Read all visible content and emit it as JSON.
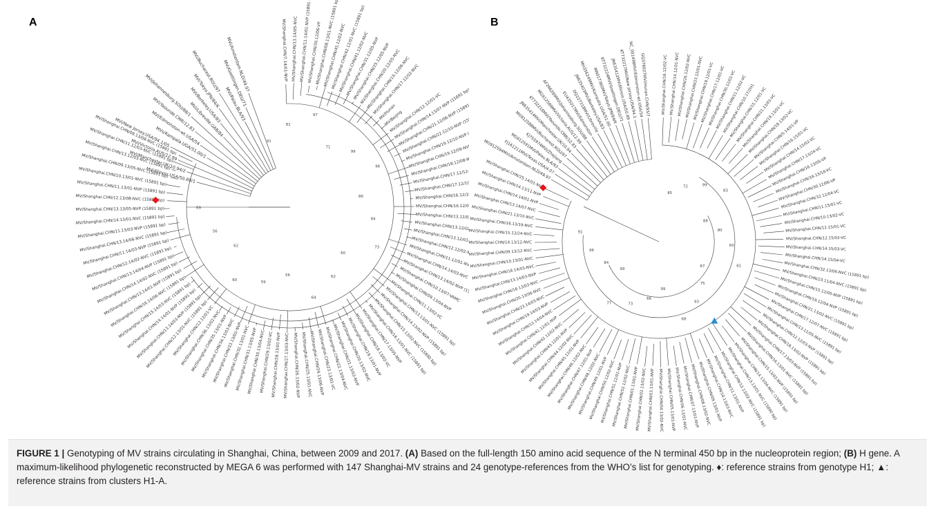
{
  "figure": {
    "panels": [
      {
        "label": "A",
        "root_marker": {
          "symbol": "diamond",
          "color": "#e8141b"
        },
        "bootstrap_values": [
          "91",
          "81",
          "97",
          "71",
          "99",
          "96",
          "86",
          "94",
          "73",
          "60",
          "62",
          "64",
          "56",
          "59",
          "60",
          "62",
          "56",
          "69"
        ],
        "tips": [
          "MV/Shanghai.CHN/7.14/01-NVP",
          "MV/Shanghai.CHN/13.14/05-NVC",
          "MV/Shanghai.CHN/11.14/01-NVP (15891 bp)",
          "MV/Shanghai.CHN/30.12/06-VP",
          "MV/Shanghai.CHN/08.13/01-NVC (15891 bp)",
          "MV/Shanghai.CHN/45.12/02-NVC",
          "MV/Shanghai.CHN/42.12/01-NVC (15891 bp)",
          "MV/Shanghai.CHN/41.12/02-NVC",
          "MV/Shanghai.CHN/31.12/05-NVP",
          "MV/Shanghai.CHN/25.12/05-NVP",
          "MV/Shanghai.CHN/20.12/05-NVC",
          "MV/Shanghai.CHN/19.12/06-NVC",
          "MV/Shanghai.CHN/17.12/02-NVC",
          "MV/Hunan",
          "MV/Beijing",
          "MV/Shanghai.CHN/12.12/01-VC",
          "MV/Shanghai.CHN/14.13/07-NVP (15891 bp)",
          "MV/Shanghai.CHN/21.12/06-NVP (15891 bp)",
          "MV/Shanghai.CHN/22.12/10-NVP (15891 bp)",
          "MV/Shanghai.CHN/19.12/10-NVP (15891 bp)",
          "MV/Shanghai.CHN/19.12/09-NVP (15891 bp)",
          "MV/Shanghai.CHN/18.12/08-NVP (15891 bp)",
          "MV/Shanghai.CHN/17.12/12-NVP (15891 bp)",
          "MV/Shanghai.CHN/17.12/10-NVC (15891 bp)",
          "MV/Shanghai.CHN/16.12/18-NVP (15891 bp)",
          "MV/Shanghai.CHN/16.12/07-NVC (15891 bp)",
          "MV/Shanghai.CHN/13.12/03-NVP (15891 bp)",
          "MV/Shanghai.CHN/13.12/02-NVP (15891 bp)",
          "MV/Shanghai.CHN/13.12/01-NVC (15891 bp)",
          "MV/Shanghai.CHN/12.12/02-NVC (15891 bp)",
          "MV/Shanghai.CHN/11.12/01-NVC (15890 bp)",
          "MV/Shanghai.CHN/14.14/03-NVC (15891 bp)",
          "MV/Shanghai.CHN/13.14/02-NVP (15891 bp)",
          "MV/Shanghai.CHN/10.13/07-VAMC",
          "MV/Shanghai.CHN/09.13/04-NVP",
          "MV/Shanghai.CHN/11.13/02-VC",
          "MV/Shanghai.CHN/13.13/01-NVC (15891 bp)",
          "MV/Shanghai.CHN/14.13/02-NVP (15891 bp)",
          "MV/Shanghai.CHN/15.13/02-NVC (15890 bp)",
          "MV/Shanghai.CHN/16.13/01-NVC (15891 bp)",
          "MV/Shanghai.CHN/17.13/05-NVP",
          "MV/Shanghai.CHN/18.13/02-VC",
          "MV/Shanghai.CHN/19.13/01-NVP",
          "MV/Shanghai.CHN/20.13/02-NVC",
          "MV/Shanghai.CHN/21.13/03-NVP",
          "MV/Shanghai.CHN/22.13/04-NVC",
          "MV/Shanghai.CHN/23.13/01-VC",
          "MV/Shanghai.CHN/24.13/06-NVP",
          "MV/Shanghai.CHN/25.13/01-NVC",
          "MV/Shanghai.CHN/26.13/02-NVP",
          "MV/Shanghai.CHN/27.13/03-NVC",
          "MV/Shanghai.CHN/28.13/01-NVP",
          "MV/Shanghai.CHN/29.13/02-VC",
          "MV/Shanghai.CHN/30.13/04-NVC",
          "MV/Shanghai.CHN/31.13/05-NVP",
          "MV/Shanghai.CHN/32.13/01-NVC",
          "MV/Shanghai.CHN/33.13/02-NVP",
          "MV/Shanghai.CHN/34.13/03-NVC",
          "MV/Shanghai.CHN/35.13/01-NVP",
          "MV/Shanghai.CHN/36.13/02-NVC",
          "MV/Shanghai.CHN/12.12/01-VC",
          "MV/Shanghai.CHN/12.13/01-NVC (15891 bp)",
          "MV/Shanghai.CHN/13.14/03-NVP (15891 bp)",
          "MV/Shanghai.CHN/14.14/01-NVP (15891 bp)",
          "MV/Shanghai.CHN/15.14/03-NVC (15891 bp)",
          "MV/Shanghai.CHN/16.14/06-NVC (15891 bp)",
          "MV/Shanghai.CHN/13.14/01-NVP (15891 bp)",
          "MV/Shanghai.CHN/14.14/02-NVC (15891 bp)",
          "MV/Shanghai.CHN/13.14/04-NVP (15891 bp)",
          "MV/Shanghai.CHN/12.14/02-NVC (15891 bp)",
          "MV/Shanghai.CHN/11.14/03-NVP (15891 bp)",
          "MV/Shanghai.CHN/13.14/06-NVC (15891 bp)",
          "MV/Shanghai.CHN/11.13/03-NVP (15891 bp)",
          "MV/Shanghai.CHN/14.13/01-NVC (15891 bp)",
          "MV/Shanghai.CHN/13.13/05-NVP (15891 bp)",
          "MV/Shanghai.CHN/12.13/08-NVC (15891 bp)",
          "MV/Shanghai.CHN/11.13/01-NVP (15891 bp)",
          "MV/Shanghai.CHN/10.13/01-NVC (15891 bp)",
          "MV/Shanghai.CHN/09.13/05-NVC (15891 bp)",
          "MV/Shanghai.CHN/13.12/03-NVC (15891 bp)",
          "MV/Shanghai.CHN/11.12/03-NVC (15891 bp)",
          "MV/Shanghai.CHN/09.13/08-NVC (15891 bp)"
        ],
        "references": [
          "MVi/Illinois.USA/50.89/1",
          "MVi/Manchester.UK/10.94/2",
          "MVi/Victoria.AUS/12.99",
          "MVi/New Jersey.USA/94.1/05",
          "MVs/Kampala.UGA/51.00/1",
          "MVi/Edmonston-wt.USA/54",
          "MVi/Yaounde.CMR/12.83",
          "MVi/Johannesburg.SOU/88/1",
          "MVi/Libreville.GAB/84",
          "MVi/Berkeley.USA/83",
          "MVi/Tokyo.JPN/84/K",
          "MVi/Bucharest.ROU/97",
          "MVi/Palau.BLA/93",
          "MVi/Goettingen.DEU/71",
          "MVi/Amsterdam.NLD/49.97"
        ]
      },
      {
        "label": "B",
        "root_marker": {
          "symbol": "diamond",
          "color": "#e8141b"
        },
        "cluster_marker": {
          "symbol": "triangle",
          "color": "#2a8fd4"
        },
        "bootstrap_values": [
          "85",
          "72",
          "99",
          "83",
          "88",
          "80",
          "60",
          "61",
          "87",
          "75",
          "93",
          "68",
          "99",
          "66",
          "73",
          "77",
          "99",
          "84",
          "96",
          "91"
        ],
        "tips": [
          "MV/Shanghai.CHN/16.12/02-VC",
          "MV/Shanghai.CHN/14.12/01-NVC",
          "MV/Shanghai.CHN/26.12/02-NVC",
          "MV/Shanghai.CHN/23.12/01-NVC",
          "MV/Shanghai.CHN/19.12/01-VC",
          "MV/Shanghai.CHN/17.12/01-VC",
          "MV/Shanghai.CHN/30.12/01-VC",
          "MV/Shanghai.CHN/11.12/02-VC",
          "MV/Shanghai.CHN/10.17/2H1",
          "MV/Shanghai.CHN/15.12/01-VC",
          "MV/Shanghai.CHN/21.13/01-VC",
          "MV/Shanghai.CHN/19.13/01-VC",
          "MV/Shanghai.CHN/18.13/02-VC",
          "MV/Shanghai.CHN/5.14/01-VP",
          "MV/Shanghai.CHN/16.15/01-VC",
          "MV/Shanghai.CHN/14.15/02-VC",
          "MV/Shanghai.CHN/17.13/24-VC",
          "MV/Shanghai.CHN/16.13/05-VP",
          "MV/Shanghai.CHN/16.13/18-VC",
          "MV/Shanghai.CHN/30.12/06-VP",
          "MV/Shanghai.CHN/32.12/04-VC",
          "MV/Shanghai.CHN/11.15/01-VC",
          "MV/Shanghai.CHN/10.13/02-VC",
          "MV/Shanghai.CHN/12.15/01-VC",
          "MV/Shanghai.CHN/12.15/02-VC",
          "MV/Shanghai.CHN/14.15/03-VC",
          "MV/Shanghai.CHN/14.15/04-VC",
          "MV/Shanghai.CHN/32.13/06-NVC (15891 bp)",
          "MV/Shanghai.CHN/23.11/04-NVC (15891 bp)",
          "MV/Shanghai.CHN/15.12/05-NVP (15891 bp)",
          "MV/Shanghai.CHN/19.12/04-NVP (15891 bp)",
          "MV/Shanghai.CHN/21.13/02-NVC (15891 bp)",
          "MV/Shanghai.CHN/17.12/07-NVC (15891 bp)",
          "MV/Shanghai.CHN/13.11/05-NVC (15891 bp)",
          "MV/Shanghai.CHN/12.12/03-NVP (15891 bp)",
          "MV/Shanghai.CHN/18.13/02-NVP (15891 bp)",
          "MV/Shanghai.CHN/17.13/03-NVP (15891 bp)",
          "MV/Shanghai.CHN/16.13/01-NVC (15891 bp)",
          "MV/Shanghai.CHN/15.13/02-NVP (15891 bp)",
          "MV/Shanghai.CHN/14.13/04-NVC (15891 bp)",
          "MV/Shanghai.CHN/13.13/01-NVC (15890 bp)",
          "MV/Shanghai.CHN/12.13/02-NVC (15891 bp)",
          "MV/Shanghai.CHN/11.13/01-NVP",
          "MV/Shanghai.CHN/10.13/03-NVC",
          "MV/Shanghai.CHN/09.13/01-NVP",
          "MV/Shanghai.CHN/08.13/02-NVC",
          "MV/Shanghai.CHN/07.13/01-NVP",
          "MV/Shanghai.CHN/06.13/02-NVC",
          "MV/Shanghai.CHN/05.13/01-NVP",
          "MV/Shanghai.CHN/04.13/02-NVC",
          "MV/Shanghai.CHN/03.13/01-NVP",
          "MV/Shanghai.CHN/02.13/02-NVC",
          "MV/Shanghai.CHN/01.13/01-NVP",
          "MV/Shanghai.CHN/52.12/02-NVC",
          "MV/Shanghai.CHN/51.12/01-NVP",
          "MV/Shanghai.CHN/50.12/02-NVC",
          "MV/Shanghai.CHN/49.12/01-NVP",
          "MV/Shanghai.CHN/48.12/02-NVC",
          "MV/Shanghai.CHN/47.12/01-NVP",
          "MV/Shanghai.CHN/46.12/02-NVC",
          "MV/Shanghai.CHN/45.12/01-NVP",
          "MV/Shanghai.CHN/44.12/02-NVC",
          "MV/Shanghai.CHN/43.12/01-NVP",
          "MV/Shanghai.CHN/42.12/02-NVC",
          "MV/Shanghai.CHN/41.12/01-NVP",
          "MV/Shanghai.CHN/12.14/04-NVC",
          "MV/Shanghai.CHN/19.14/03-NVP",
          "MV/Shanghai.CHN/23.14/03-NVC",
          "MV/Shanghai.CHN/20.13/06-NVC",
          "MV/Shanghai.CHN/16.13/03-NVC",
          "MV/Shanghai.CHN/13.14/03-NVP",
          "MV/Shanghai.CHN/18.14/03-NVC",
          "MV/Shanghai.CHN/10.13/01-NVC",
          "MV/Shanghai.CHN/09.13/12-NVC",
          "MV/Shanghai.CHN/14.13/12-NVC",
          "MV/Shanghai.CHN/15.13/24-NVC",
          "MV/Shanghai.CHN/16.13/19-NVC",
          "MV/Shanghai.CHN/21.13/10-NVC",
          "MV/Shanghai.CHN/13.14/07-NVC",
          "MV/Shanghai.CHN/14.14/01-NVP",
          "MV/Shanghai.CHN/14.13/11-NVP",
          "MV/Shanghai.CHN/25.14/01-NVC"
        ],
        "references": [
          "MG912594MVi/Amsterdam.NLD/49.97",
          "FJ161211MVi/Texas.USA/4.07",
          "MG912591MVi/Palau.BLA/93",
          "KJ755974MVi/Zhejiang",
          "MG912588MVi/Bucharest.ROU/97",
          "JN635414MVi/Manchester.UK/10.94",
          "KT732218MVi/Yaounde.CMR/12.83",
          "MG912589MVi/Victoria.AUS/12.99",
          "AF266289MVi/Johannesburg.SOU/88",
          "EU435017MVi/Edmonston",
          "DQ227318MVi/Libreville",
          "JN635403MVi/Berkeley.USA/83",
          "MH356249MVi/Kampala.UGA/51.00",
          "MN017360MVi/Tokyo.JPN/84/K",
          "KT732224MVi/Goettingen.DEU/71",
          "JN635412MVi/Illinois.USA/50.89",
          "KT732217MVi/New Jersey.USA/94.1",
          "NC_001498MVi/Edmonston-wt.USA/54",
          "GQ376027MVi/Hunan.CHN/93/7"
        ]
      }
    ],
    "caption": {
      "label": "FIGURE 1 |",
      "intro": "Genotyping of MV strains circulating in Shanghai, China, between 2009 and 2017.",
      "part_a_label": "(A)",
      "part_a_text": "Based on the full-length 150 amino acid sequence of the N terminal 450 bp in the nucleoprotein region;",
      "part_b_label": "(B)",
      "part_b_text": "H gene. A maximum-likelihood phylogenetic reconstructed by MEGA 6 was performed with 147 Shanghai-MV strains and 24 genotype-references from the WHO’s list for genotyping. ♦: reference strains from genotype H1; ▲: reference strains from clusters H1-A."
    }
  }
}
